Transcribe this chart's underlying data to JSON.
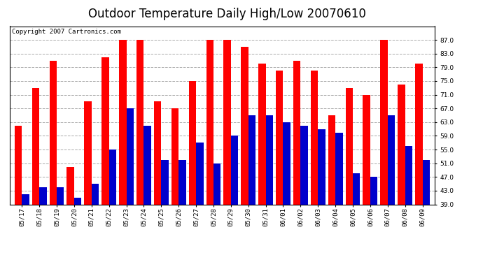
{
  "title": "Outdoor Temperature Daily High/Low 20070610",
  "copyright": "Copyright 2007 Cartronics.com",
  "dates": [
    "05/17",
    "05/18",
    "05/19",
    "05/20",
    "05/21",
    "05/22",
    "05/23",
    "05/24",
    "05/25",
    "05/26",
    "05/27",
    "05/28",
    "05/29",
    "05/30",
    "05/31",
    "06/01",
    "06/02",
    "06/03",
    "06/04",
    "06/05",
    "06/06",
    "06/07",
    "06/08",
    "06/09"
  ],
  "highs": [
    62,
    73,
    81,
    50,
    69,
    82,
    87,
    87,
    69,
    67,
    75,
    87,
    87,
    85,
    80,
    78,
    81,
    78,
    65,
    73,
    71,
    87,
    74,
    80
  ],
  "lows": [
    42,
    44,
    44,
    41,
    45,
    55,
    67,
    62,
    52,
    52,
    57,
    51,
    59,
    65,
    65,
    63,
    62,
    61,
    60,
    48,
    47,
    65,
    56,
    52
  ],
  "high_color": "#ff0000",
  "low_color": "#0000cc",
  "bg_color": "#ffffff",
  "grid_color": "#aaaaaa",
  "ymin": 39.0,
  "ymax": 91.0,
  "yticks": [
    39.0,
    43.0,
    47.0,
    51.0,
    55.0,
    59.0,
    63.0,
    67.0,
    71.0,
    75.0,
    79.0,
    83.0,
    87.0
  ],
  "ylabels": [
    "39.0",
    "43.0",
    "47.0",
    "51.0",
    "55.0",
    "59.0",
    "63.0",
    "67.0",
    "71.0",
    "75.0",
    "79.0",
    "83.0",
    "87.0"
  ],
  "title_fontsize": 12,
  "copyright_fontsize": 6.5,
  "tick_fontsize": 6.5,
  "bar_width": 0.42
}
